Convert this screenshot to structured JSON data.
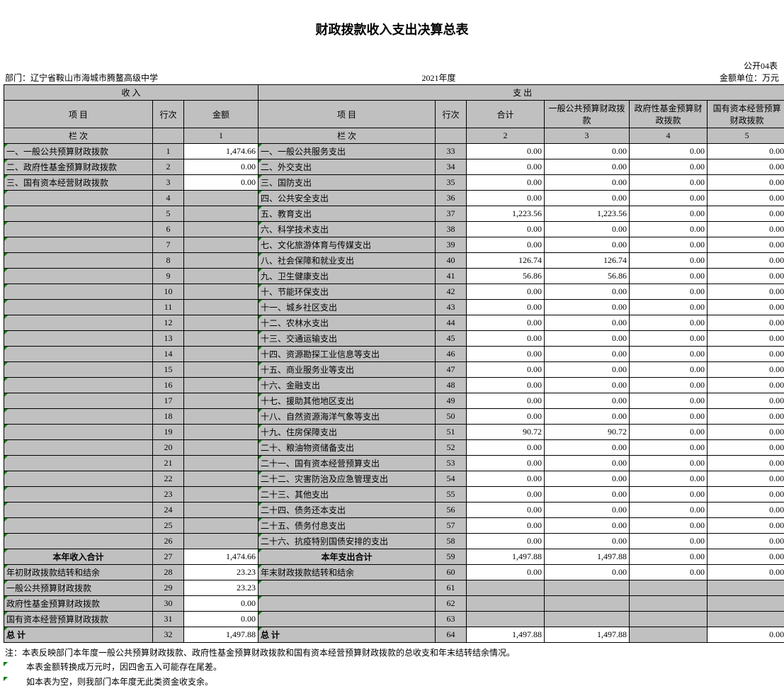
{
  "title": "财政拨款收入支出决算总表",
  "meta": {
    "table_no": "公开04表",
    "dept_label": "部门：",
    "dept_name": "辽宁省鞍山市海城市腾鳌高级中学",
    "year": "2021年度",
    "unit": "金额单位：万元"
  },
  "headers": {
    "income": "收            入",
    "expense": "支        出",
    "item": "项                                          目",
    "item_out": "项                                                        目",
    "rownum": "行次",
    "amount": "金额",
    "heji": "合计",
    "c3": "一般公共预算财政拨款",
    "c4": "政府性基金预算财政拨款",
    "c5": "国有资本经营预算财政拨款",
    "lan_in": "栏                                          次",
    "lan_out": "栏                                                        次",
    "col1": "1",
    "col2": "2",
    "col3": "3",
    "col4": "4",
    "col5": "5"
  },
  "rows": [
    {
      "in_item": "一、一般公共预算财政拨款",
      "in_rn": "1",
      "in_amt": "1,474.66",
      "in_amt_bg": "white",
      "out_item": "一、一般公共服务支出",
      "out_rn": "33",
      "c2": "0.00",
      "c3": "0.00",
      "c4": "0.00",
      "c5": "0.00"
    },
    {
      "in_item": "二、政府性基金预算财政拨款",
      "in_rn": "2",
      "in_amt": "0.00",
      "in_amt_bg": "white",
      "out_item": "二、外交支出",
      "out_rn": "34",
      "c2": "0.00",
      "c3": "0.00",
      "c4": "0.00",
      "c5": "0.00"
    },
    {
      "in_item": "三、国有资本经营财政拨款",
      "in_rn": "3",
      "in_amt": "0.00",
      "in_amt_bg": "white",
      "out_item": "三、国防支出",
      "out_rn": "35",
      "c2": "0.00",
      "c3": "0.00",
      "c4": "0.00",
      "c5": "0.00"
    },
    {
      "in_item": "",
      "in_rn": "4",
      "in_amt": "",
      "in_amt_bg": "gray",
      "out_item": "  四、公共安全支出",
      "out_rn": "36",
      "c2": "0.00",
      "c3": "0.00",
      "c4": "0.00",
      "c5": "0.00"
    },
    {
      "in_item": "",
      "in_rn": "5",
      "in_amt": "",
      "in_amt_bg": "gray",
      "out_item": "  五、教育支出",
      "out_rn": "37",
      "c2": "1,223.56",
      "c3": "1,223.56",
      "c4": "0.00",
      "c5": "0.00"
    },
    {
      "in_item": "",
      "in_rn": "6",
      "in_amt": "",
      "in_amt_bg": "gray",
      "out_item": "  六、科学技术支出",
      "out_rn": "38",
      "c2": "0.00",
      "c3": "0.00",
      "c4": "0.00",
      "c5": "0.00"
    },
    {
      "in_item": "",
      "in_rn": "7",
      "in_amt": "",
      "in_amt_bg": "gray",
      "out_item": "  七、文化旅游体育与传媒支出",
      "out_rn": "39",
      "c2": "0.00",
      "c3": "0.00",
      "c4": "0.00",
      "c5": "0.00"
    },
    {
      "in_item": "",
      "in_rn": "8",
      "in_amt": "",
      "in_amt_bg": "gray",
      "out_item": "  八、社会保障和就业支出",
      "out_rn": "40",
      "c2": "126.74",
      "c3": "126.74",
      "c4": "0.00",
      "c5": "0.00"
    },
    {
      "in_item": "",
      "in_rn": "9",
      "in_amt": "",
      "in_amt_bg": "gray",
      "out_item": "  九、卫生健康支出",
      "out_rn": "41",
      "c2": "56.86",
      "c3": "56.86",
      "c4": "0.00",
      "c5": "0.00"
    },
    {
      "in_item": "",
      "in_rn": "10",
      "in_amt": "",
      "in_amt_bg": "gray",
      "out_item": "  十、节能环保支出",
      "out_rn": "42",
      "c2": "0.00",
      "c3": "0.00",
      "c4": "0.00",
      "c5": "0.00"
    },
    {
      "in_item": "",
      "in_rn": "11",
      "in_amt": "",
      "in_amt_bg": "gray",
      "out_item": "  十一、城乡社区支出",
      "out_rn": "43",
      "c2": "0.00",
      "c3": "0.00",
      "c4": "0.00",
      "c5": "0.00"
    },
    {
      "in_item": "",
      "in_rn": "12",
      "in_amt": "",
      "in_amt_bg": "gray",
      "out_item": "  十二、农林水支出",
      "out_rn": "44",
      "c2": "0.00",
      "c3": "0.00",
      "c4": "0.00",
      "c5": "0.00"
    },
    {
      "in_item": "",
      "in_rn": "13",
      "in_amt": "",
      "in_amt_bg": "gray",
      "out_item": "  十三、交通运输支出",
      "out_rn": "45",
      "c2": "0.00",
      "c3": "0.00",
      "c4": "0.00",
      "c5": "0.00"
    },
    {
      "in_item": "",
      "in_rn": "14",
      "in_amt": "",
      "in_amt_bg": "gray",
      "out_item": "  十四、资源勘探工业信息等支出",
      "out_rn": "46",
      "c2": "0.00",
      "c3": "0.00",
      "c4": "0.00",
      "c5": "0.00"
    },
    {
      "in_item": "",
      "in_rn": "15",
      "in_amt": "",
      "in_amt_bg": "gray",
      "out_item": "  十五、商业服务业等支出",
      "out_rn": "47",
      "c2": "0.00",
      "c3": "0.00",
      "c4": "0.00",
      "c5": "0.00"
    },
    {
      "in_item": "",
      "in_rn": "16",
      "in_amt": "",
      "in_amt_bg": "gray",
      "out_item": "  十六、金融支出",
      "out_rn": "48",
      "c2": "0.00",
      "c3": "0.00",
      "c4": "0.00",
      "c5": "0.00"
    },
    {
      "in_item": "",
      "in_rn": "17",
      "in_amt": "",
      "in_amt_bg": "gray",
      "out_item": "  十七、援助其他地区支出",
      "out_rn": "49",
      "c2": "0.00",
      "c3": "0.00",
      "c4": "0.00",
      "c5": "0.00"
    },
    {
      "in_item": "",
      "in_rn": "18",
      "in_amt": "",
      "in_amt_bg": "gray",
      "out_item": "  十八、自然资源海洋气象等支出",
      "out_rn": "50",
      "c2": "0.00",
      "c3": "0.00",
      "c4": "0.00",
      "c5": "0.00"
    },
    {
      "in_item": "",
      "in_rn": "19",
      "in_amt": "",
      "in_amt_bg": "gray",
      "out_item": "  十九、住房保障支出",
      "out_rn": "51",
      "c2": "90.72",
      "c3": "90.72",
      "c4": "0.00",
      "c5": "0.00"
    },
    {
      "in_item": "",
      "in_rn": "20",
      "in_amt": "",
      "in_amt_bg": "gray",
      "out_item": "  二十、粮油物资储备支出",
      "out_rn": "52",
      "c2": "0.00",
      "c3": "0.00",
      "c4": "0.00",
      "c5": "0.00"
    },
    {
      "in_item": "",
      "in_rn": "21",
      "in_amt": "",
      "in_amt_bg": "gray",
      "out_item": "  二十一、国有资本经营预算支出",
      "out_rn": "53",
      "c2": "0.00",
      "c3": "0.00",
      "c4": "0.00",
      "c5": "0.00"
    },
    {
      "in_item": "",
      "in_rn": "22",
      "in_amt": "",
      "in_amt_bg": "gray",
      "out_item": "  二十二、灾害防治及应急管理支出",
      "out_rn": "54",
      "c2": "0.00",
      "c3": "0.00",
      "c4": "0.00",
      "c5": "0.00"
    },
    {
      "in_item": "",
      "in_rn": "23",
      "in_amt": "",
      "in_amt_bg": "gray",
      "out_item": "  二十三、其他支出",
      "out_rn": "55",
      "c2": "0.00",
      "c3": "0.00",
      "c4": "0.00",
      "c5": "0.00"
    },
    {
      "in_item": "",
      "in_rn": "24",
      "in_amt": "",
      "in_amt_bg": "gray",
      "out_item": "  二十四、债务还本支出",
      "out_rn": "56",
      "c2": "0.00",
      "c3": "0.00",
      "c4": "0.00",
      "c5": "0.00"
    },
    {
      "in_item": "",
      "in_rn": "25",
      "in_amt": "",
      "in_amt_bg": "gray",
      "out_item": "  二十五、债务付息支出",
      "out_rn": "57",
      "c2": "0.00",
      "c3": "0.00",
      "c4": "0.00",
      "c5": "0.00"
    },
    {
      "in_item": "",
      "in_rn": "26",
      "in_amt": "",
      "in_amt_bg": "gray",
      "out_item": "  二十六、抗疫特别国债安排的支出",
      "out_rn": "58",
      "c2": "0.00",
      "c3": "0.00",
      "c4": "0.00",
      "c5": "0.00"
    }
  ],
  "subtotals": [
    {
      "in_item": "本年收入合计",
      "in_bold": true,
      "in_align": "center",
      "in_rn": "27",
      "in_amt": "1,474.66",
      "in_amt_bg": "white",
      "out_item": "本年支出合计",
      "out_bold": true,
      "out_align": "center",
      "out_rn": "59",
      "c2": "1,497.88",
      "c3": "1,497.88",
      "c4": "0.00",
      "c5": "0.00"
    },
    {
      "in_item": "年初财政拨款结转和结余",
      "in_bold": false,
      "in_align": "left",
      "in_rn": "28",
      "in_amt": "23.23",
      "in_amt_bg": "white",
      "out_item": "年末财政拨款结转和结余",
      "out_bold": false,
      "out_align": "left",
      "out_rn": "60",
      "c2": "0.00",
      "c3": "0.00",
      "c4": "0.00",
      "c5": "0.00"
    },
    {
      "in_item": "  一般公共预算财政拨款",
      "in_bold": false,
      "in_align": "left",
      "in_rn": "29",
      "in_amt": "23.23",
      "in_amt_bg": "white",
      "out_item": "",
      "out_bold": false,
      "out_align": "left",
      "out_rn": "61",
      "c2": "",
      "c3": "",
      "c4": "",
      "c5": "",
      "out_gray": true
    },
    {
      "in_item": "  政府性基金预算财政拨款",
      "in_bold": false,
      "in_align": "left",
      "in_rn": "30",
      "in_amt": "0.00",
      "in_amt_bg": "white",
      "out_item": "",
      "out_bold": false,
      "out_align": "left",
      "out_rn": "62",
      "c2": "",
      "c3": "",
      "c4": "",
      "c5": "",
      "out_gray": true
    },
    {
      "in_item": "  国有资本经营预算财政拨款",
      "in_bold": false,
      "in_align": "left",
      "in_rn": "31",
      "in_amt": "0.00",
      "in_amt_bg": "white",
      "out_item": "",
      "out_bold": false,
      "out_align": "left",
      "out_rn": "63",
      "c2": "",
      "c3": "",
      "c4": "",
      "c5": "",
      "out_gray": true
    }
  ],
  "total": {
    "in_item": "总                                          计",
    "in_rn": "32",
    "in_amt": "1,497.88",
    "out_item": "总                                                        计",
    "out_rn": "64",
    "c2": "1,497.88",
    "c3": "1,497.88",
    "c4": "",
    "c5": "0.00"
  },
  "notes": {
    "n1": "注：本表反映部门本年度一般公共预算财政拨款、政府性基金预算财政拨款和国有资本经营预算财政拨款的总收支和年末结转结余情况。",
    "n2": "本表金额转换成万元时，因四舍五入可能存在尾差。",
    "n3": "如本表为空，则我部门本年度无此类资金收支余。"
  }
}
